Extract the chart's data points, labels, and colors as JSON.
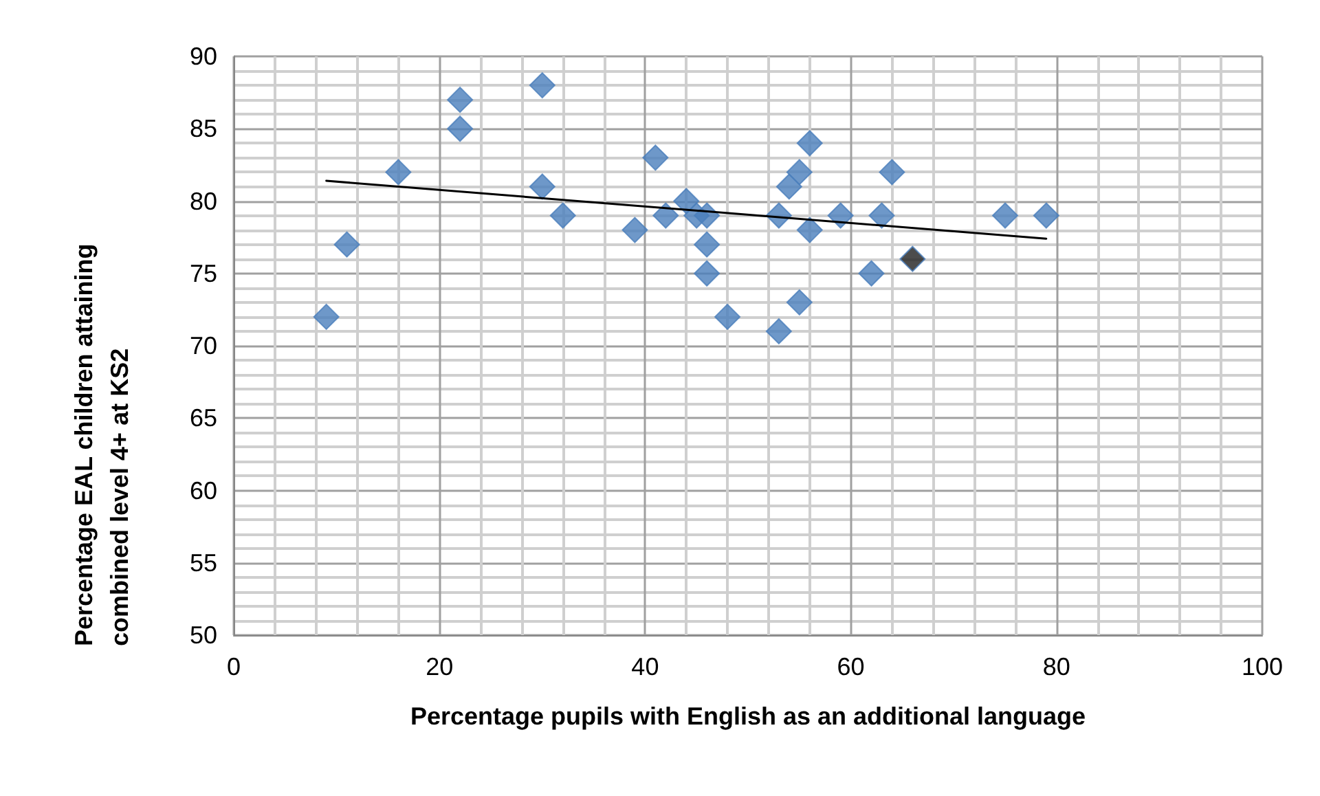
{
  "chart_data": {
    "type": "scatter",
    "xlabel": "Percentage pupils with English as an additional language",
    "ylabel": "Percentage EAL children attaining combined level 4+ at KS2",
    "xlim": [
      0,
      100
    ],
    "xticks": [
      0,
      20,
      40,
      60,
      80,
      100
    ],
    "ylim": [
      50,
      90
    ],
    "yticks": [
      50,
      55,
      60,
      65,
      70,
      75,
      80,
      85,
      90
    ],
    "grid": true,
    "marker": "diamond",
    "series": [
      {
        "color": "#4a7ebb",
        "x": [
          9,
          11,
          16,
          22,
          22,
          30,
          30,
          32,
          39,
          41,
          42,
          44,
          45,
          46,
          46,
          46,
          48,
          53,
          53,
          54,
          55,
          55,
          56,
          56,
          59,
          62,
          63,
          64,
          75,
          79
        ],
        "values": [
          72,
          77,
          82,
          87,
          85,
          88,
          81,
          79,
          78,
          83,
          79,
          80,
          79,
          79,
          77,
          75,
          72,
          79,
          71,
          81,
          82,
          73,
          84,
          78,
          79,
          75,
          79,
          82,
          79,
          79
        ]
      },
      {
        "color": "#1f1f1f",
        "x": [
          66
        ],
        "values": [
          76
        ]
      },
      {
        "type": "line",
        "color": "#000000",
        "marker": "none",
        "x": [
          9,
          79
        ],
        "values": [
          81.4,
          77.4
        ]
      }
    ]
  }
}
